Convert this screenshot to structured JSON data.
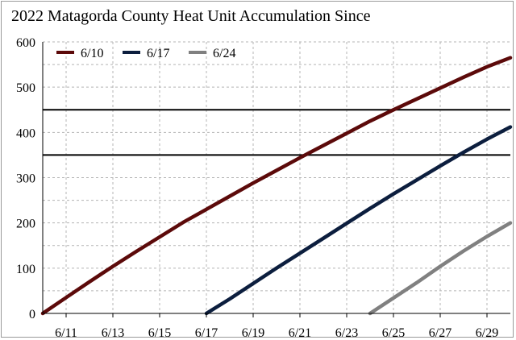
{
  "chart_data": {
    "type": "line",
    "title": "2022 Matagorda County Heat Unit Accumulation Since",
    "xlabel": "",
    "ylabel": "",
    "ylim": [
      0,
      600
    ],
    "yticks": [
      "0",
      "100",
      "200",
      "300",
      "400",
      "500",
      "600"
    ],
    "xlim": [
      "6/10",
      "6/30"
    ],
    "xtick_labels": [
      "6/11",
      "6/13",
      "6/15",
      "6/17",
      "6/19",
      "6/21",
      "6/23",
      "6/25",
      "6/27",
      "6/29"
    ],
    "grid": "dashed",
    "legend_position": "top-left",
    "reference_lines": [
      350,
      450
    ],
    "series": [
      {
        "name": "6/10",
        "color": "#5c0a0a",
        "points": [
          [
            "6/10",
            0
          ],
          [
            "6/11",
            35
          ],
          [
            "6/12",
            70
          ],
          [
            "6/13",
            104
          ],
          [
            "6/14",
            137
          ],
          [
            "6/15",
            169
          ],
          [
            "6/16",
            201
          ],
          [
            "6/17",
            230
          ],
          [
            "6/18",
            259
          ],
          [
            "6/19",
            288
          ],
          [
            "6/20",
            316
          ],
          [
            "6/21",
            344
          ],
          [
            "6/22",
            371
          ],
          [
            "6/23",
            398
          ],
          [
            "6/24",
            425
          ],
          [
            "6/25",
            450
          ],
          [
            "6/26",
            474
          ],
          [
            "6/27",
            498
          ],
          [
            "6/28",
            522
          ],
          [
            "6/29",
            545
          ],
          [
            "6/30",
            565
          ]
        ]
      },
      {
        "name": "6/17",
        "color": "#0c1e3e",
        "points": [
          [
            "6/17",
            0
          ],
          [
            "6/18",
            32
          ],
          [
            "6/19",
            66
          ],
          [
            "6/20",
            100
          ],
          [
            "6/21",
            133
          ],
          [
            "6/22",
            166
          ],
          [
            "6/23",
            199
          ],
          [
            "6/24",
            232
          ],
          [
            "6/25",
            264
          ],
          [
            "6/26",
            295
          ],
          [
            "6/27",
            326
          ],
          [
            "6/28",
            356
          ],
          [
            "6/29",
            385
          ],
          [
            "6/30",
            412
          ]
        ]
      },
      {
        "name": "6/24",
        "color": "#808080",
        "points": [
          [
            "6/24",
            0
          ],
          [
            "6/25",
            34
          ],
          [
            "6/26",
            68
          ],
          [
            "6/27",
            104
          ],
          [
            "6/28",
            138
          ],
          [
            "6/29",
            170
          ],
          [
            "6/30",
            200
          ]
        ]
      }
    ]
  }
}
